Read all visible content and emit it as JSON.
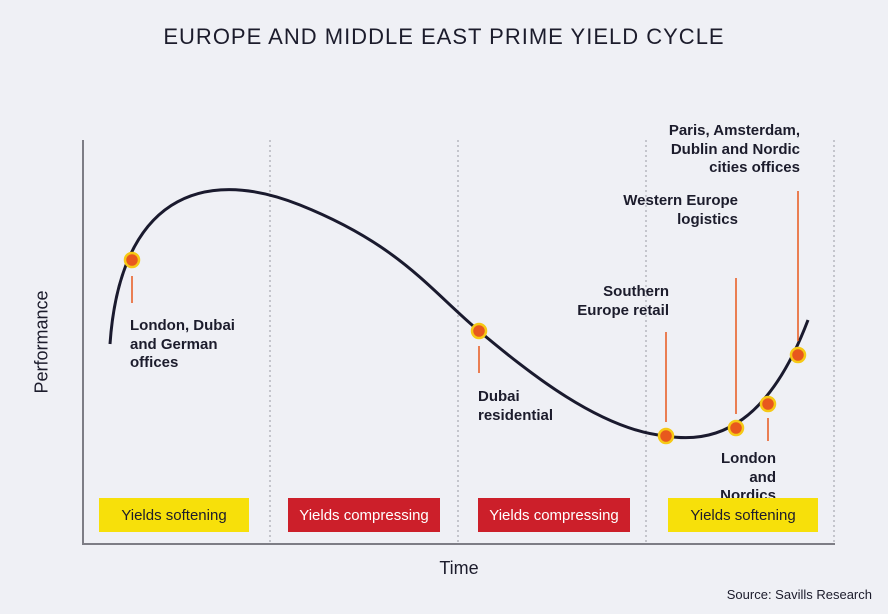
{
  "title": "EUROPE AND MIDDLE EAST PRIME YIELD CYCLE",
  "axes": {
    "y_label": "Performance",
    "x_label": "Time"
  },
  "source": "Source: Savills Research",
  "colors": {
    "marker_fill": "#e8581d",
    "marker_stroke": "#f6c915",
    "leader": "#e8581d",
    "curve": "#1a1a2e",
    "yields_softening": "#f7e00a",
    "yields_compressing": "#cc1f2a"
  },
  "phases": [
    {
      "label": "Yields softening",
      "type": "softening"
    },
    {
      "label": "Yields compressing",
      "type": "compressing"
    },
    {
      "label": "Yields compressing",
      "type": "compressing"
    },
    {
      "label": "Yields softening",
      "type": "softening"
    }
  ],
  "markers": [
    {
      "label": "London, Dubai\nand German\noffices"
    },
    {
      "label": "Dubai\nresidential"
    },
    {
      "label": "Southern\nEurope retail"
    },
    {
      "label": "Western Europe\nlogistics"
    },
    {
      "label": "London\nand\nNordics\nretail"
    },
    {
      "label": "Paris, Amsterdam,\nDublin and Nordic\ncities offices"
    }
  ]
}
